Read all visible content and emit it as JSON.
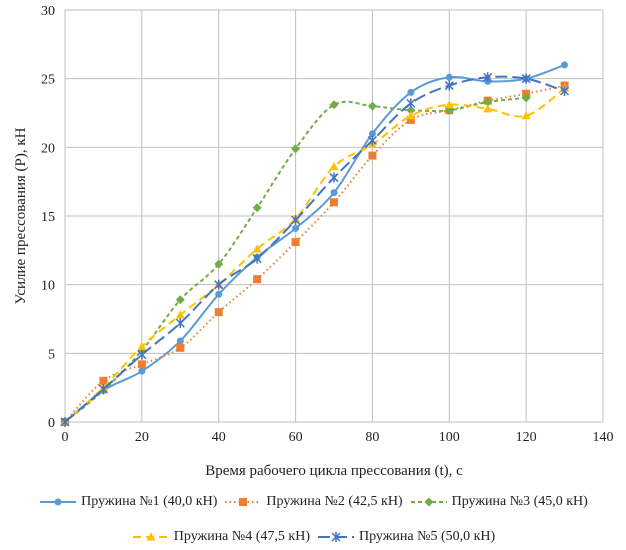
{
  "chart_data": {
    "type": "line",
    "title": "",
    "xlabel": "Время рабочего цикла прессования (t), с",
    "ylabel": "Усилие прессования (P), кН",
    "xlim": [
      0,
      140
    ],
    "ylim": [
      0,
      30
    ],
    "xticks": [
      "0",
      "20",
      "40",
      "60",
      "80",
      "100",
      "120",
      "140"
    ],
    "yticks": [
      "0",
      "5",
      "10",
      "15",
      "20",
      "25",
      "30"
    ],
    "grid": true,
    "legend_position": "bottom",
    "series": [
      {
        "name": "Пружина №1 (40,0 кН)",
        "color": "#5b9bd5",
        "marker": "circle",
        "dash": "",
        "x": [
          0,
          10,
          20,
          30,
          40,
          50,
          60,
          70,
          80,
          90,
          100,
          110,
          120,
          130
        ],
        "values": [
          0,
          2.3,
          3.7,
          5.9,
          9.3,
          12,
          14.1,
          16.7,
          21,
          24,
          25.1,
          24.8,
          25,
          26
        ]
      },
      {
        "name": "Пружина №2 (42,5 кН)",
        "color": "#ed7d31",
        "marker": "square",
        "dash": "1.5 3",
        "x": [
          0,
          10,
          20,
          30,
          40,
          50,
          60,
          70,
          80,
          90,
          100,
          110,
          120,
          130
        ],
        "values": [
          0,
          3,
          4.2,
          5.4,
          8,
          10.4,
          13.1,
          16,
          19.4,
          22,
          22.7,
          23.4,
          23.9,
          24.5
        ]
      },
      {
        "name": "Пружина №3 (45,0 кН)",
        "color": "#70ad47",
        "marker": "diamond",
        "dash": "4 3",
        "x": [
          0,
          10,
          20,
          30,
          40,
          50,
          60,
          70,
          80,
          90,
          100,
          110,
          120
        ],
        "values": [
          0,
          2.3,
          5.2,
          8.9,
          11.5,
          15.6,
          19.9,
          23.1,
          23,
          22.7,
          22.7,
          23.3,
          23.6
        ]
      },
      {
        "name": "Пружина №4 (47,5 кН)",
        "color": "#ffc000",
        "marker": "triangle",
        "dash": "8 5",
        "x": [
          0,
          10,
          20,
          30,
          40,
          50,
          60,
          70,
          80,
          90,
          100,
          110,
          120,
          130
        ],
        "values": [
          0,
          2.5,
          5.5,
          7.8,
          10,
          12.6,
          14.8,
          18.6,
          20.2,
          22.3,
          23.1,
          22.8,
          22.3,
          24.3
        ]
      },
      {
        "name": "Пружина №5 (50,0 кН)",
        "color": "#4472c4",
        "marker": "star",
        "dash": "12 5",
        "x": [
          0,
          10,
          20,
          30,
          40,
          50,
          60,
          70,
          80,
          90,
          100,
          110,
          120,
          130
        ],
        "values": [
          0,
          2.4,
          4.9,
          7.2,
          10,
          11.9,
          14.7,
          17.8,
          20.5,
          23.2,
          24.5,
          25.1,
          25,
          24.1
        ]
      }
    ]
  }
}
